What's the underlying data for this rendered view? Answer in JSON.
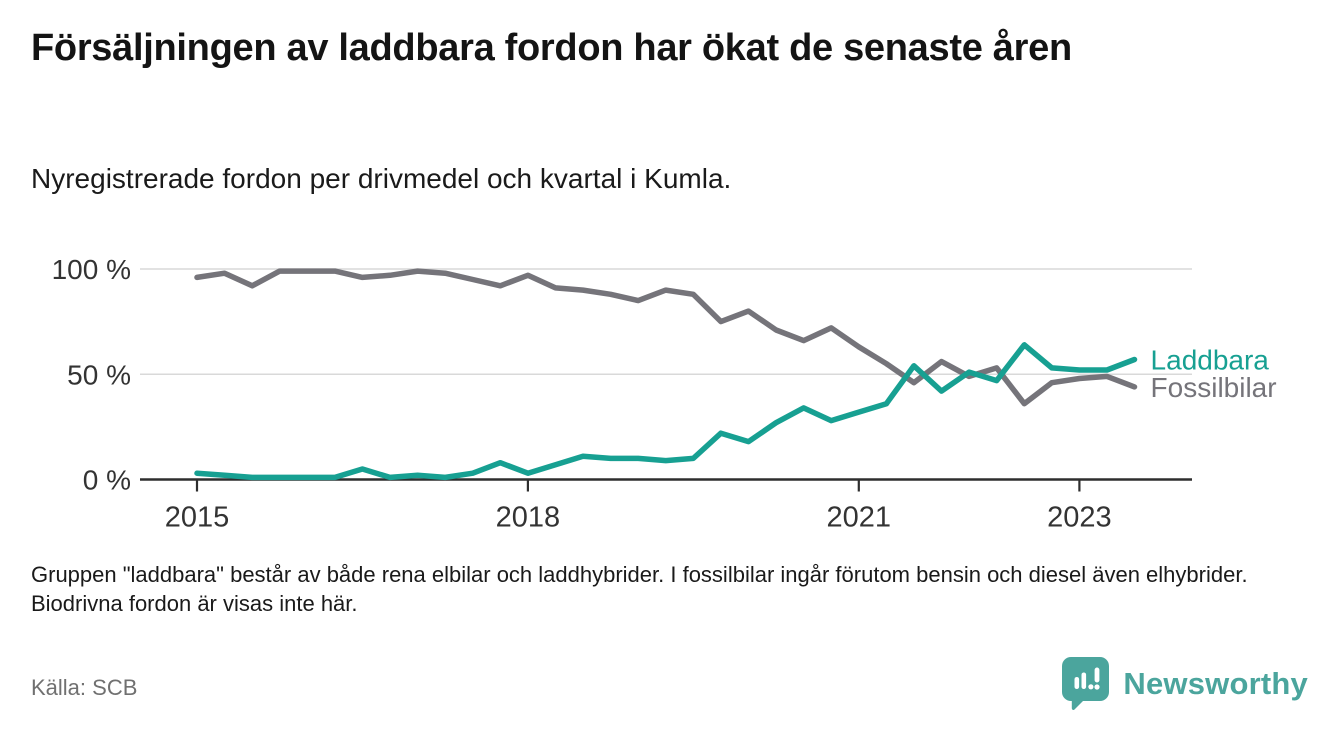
{
  "header": {
    "title": "Försäljningen av laddbara fordon har ökat de senaste åren",
    "subtitle": "Nyregistrerade fordon per drivmedel och kvartal i Kumla."
  },
  "chart_data": {
    "type": "line",
    "unit": "%",
    "grid": "horizontal",
    "legend_position": "right-of-line-end",
    "ylim": [
      0,
      100
    ],
    "y_ticks": [
      {
        "value": 100,
        "label": "100 %"
      },
      {
        "value": 50,
        "label": "50 %"
      },
      {
        "value": 0,
        "label": "0 %"
      }
    ],
    "x_ticks": [
      {
        "year": 2015,
        "label": "2015"
      },
      {
        "year": 2018,
        "label": "2018"
      },
      {
        "year": 2021,
        "label": "2021"
      },
      {
        "year": 2023,
        "label": "2023"
      }
    ],
    "x_start_year": 2015,
    "quarters": [
      "2015Q1",
      "2015Q2",
      "2015Q3",
      "2015Q4",
      "2016Q1",
      "2016Q2",
      "2016Q3",
      "2016Q4",
      "2017Q1",
      "2017Q2",
      "2017Q3",
      "2017Q4",
      "2018Q1",
      "2018Q2",
      "2018Q3",
      "2018Q4",
      "2019Q1",
      "2019Q2",
      "2019Q3",
      "2019Q4",
      "2020Q1",
      "2020Q2",
      "2020Q3",
      "2020Q4",
      "2021Q1",
      "2021Q2",
      "2021Q3",
      "2021Q4",
      "2022Q1",
      "2022Q2",
      "2022Q3",
      "2022Q4",
      "2023Q1",
      "2023Q2",
      "2023Q3"
    ],
    "series": [
      {
        "name": "Fossilbilar",
        "color": "#75747A",
        "values": [
          96,
          98,
          92,
          99,
          99,
          99,
          96,
          97,
          99,
          98,
          95,
          92,
          97,
          91,
          90,
          88,
          85,
          90,
          88,
          75,
          80,
          71,
          66,
          72,
          63,
          55,
          46,
          56,
          49,
          53,
          36,
          46,
          48,
          49,
          44
        ]
      },
      {
        "name": "Laddbara",
        "color": "#17A092",
        "values": [
          3,
          2,
          1,
          1,
          1,
          1,
          5,
          1,
          2,
          1,
          3,
          8,
          3,
          7,
          11,
          10,
          10,
          9,
          10,
          22,
          18,
          27,
          34,
          28,
          32,
          36,
          54,
          42,
          51,
          47,
          64,
          53,
          52,
          52,
          57
        ]
      }
    ]
  },
  "footer": {
    "note": "Gruppen \"laddbara\" består av både rena elbilar och laddhybrider. I fossilbilar ingår förutom bensin och diesel även elhybrider. Biodrivna fordon är visas inte här.",
    "source": "Källa: SCB"
  },
  "branding": {
    "name": "Newsworthy",
    "color": "#4BA59D",
    "icon": "bar-chart-speech-bubble-icon"
  }
}
